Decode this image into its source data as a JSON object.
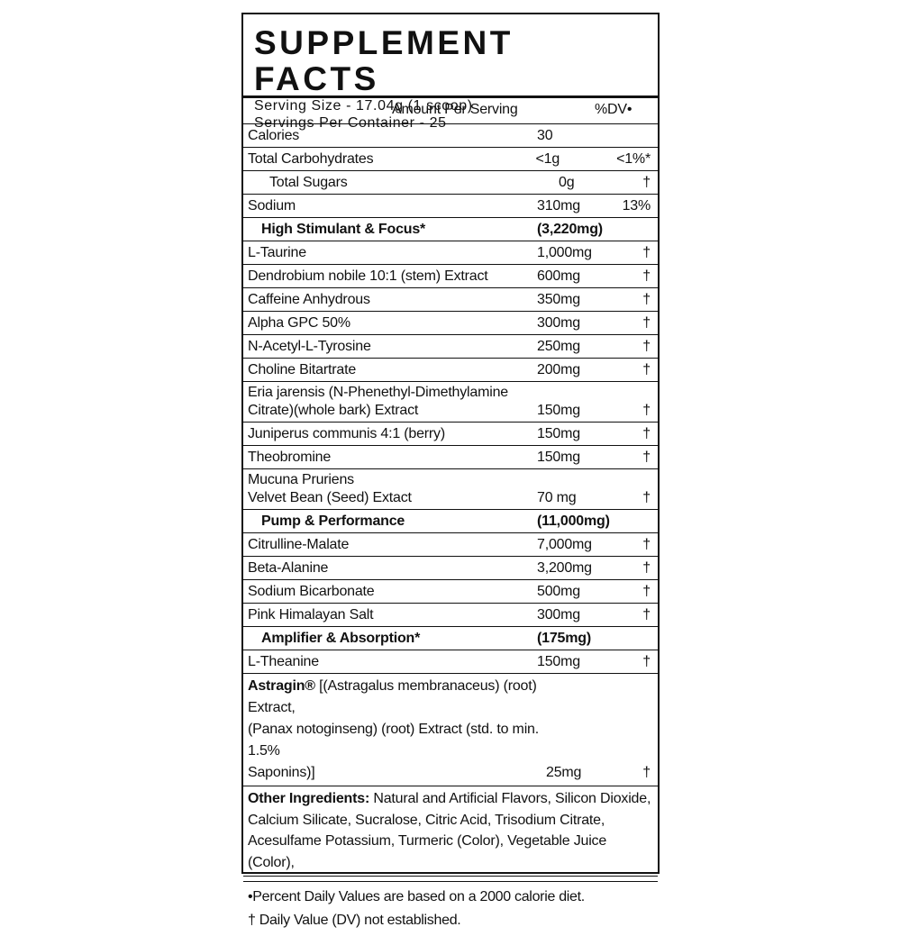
{
  "title": "SUPPLEMENT FACTS",
  "serving_size": "Serving Size - 17.04g (1 scoop)",
  "servings_per_container": "Servings Per Container - 25",
  "header": {
    "amount": "Amount Per Serving",
    "dv": "%DV•"
  },
  "nutrients": [
    {
      "name": "Calories",
      "amount": "30"
    },
    {
      "name": "Total Carbohydrates",
      "amount": "<1g",
      "dv": "<1%*",
      "sub": [
        {
          "name": "Total Sugars",
          "amount": "0g",
          "dv": "†"
        }
      ]
    },
    {
      "name": "Sodium",
      "amount": "310mg",
      "dv": "13%"
    }
  ],
  "blends": [
    {
      "name": "High Stimulant & Focus*",
      "amount": "(3,220mg)",
      "ingredients": [
        {
          "name": "L-Taurine",
          "amount": "1,000mg",
          "dv": "†"
        },
        {
          "name": "Dendrobium nobile 10:1 (stem) Extract",
          "amount": "600mg",
          "dv": "†"
        },
        {
          "name": "Caffeine Anhydrous",
          "amount": "350mg",
          "dv": "†"
        },
        {
          "name": "Alpha GPC 50%",
          "amount": "300mg",
          "dv": "†"
        },
        {
          "name": "N-Acetyl-L-Tyrosine",
          "amount": "250mg",
          "dv": "†"
        },
        {
          "name": "Choline Bitartrate",
          "amount": "200mg",
          "dv": "†"
        },
        {
          "name": [
            "Eria jarensis (N-Phenethyl-Dimethylamine",
            "Citrate)(whole bark) Extract"
          ],
          "amount": "150mg",
          "dv": "†"
        },
        {
          "name": "Juniperus communis 4:1 (berry)",
          "amount": "150mg",
          "dv": "†"
        },
        {
          "name": "Theobromine",
          "amount": "150mg",
          "dv": "†"
        },
        {
          "name": [
            "Mucuna Pruriens",
            "Velvet Bean (Seed) Extact"
          ],
          "amount": "70 mg",
          "dv": "†"
        }
      ]
    },
    {
      "name": "Pump & Performance",
      "amount": "(11,000mg)",
      "ingredients": [
        {
          "name": "Citrulline-Malate",
          "amount": "7,000mg",
          "dv": "†"
        },
        {
          "name": "Beta-Alanine",
          "amount": "3,200mg",
          "dv": "†"
        },
        {
          "name": "Sodium Bicarbonate",
          "amount": "500mg",
          "dv": "†"
        },
        {
          "name": "Pink Himalayan Salt",
          "amount": "300mg",
          "dv": "†"
        }
      ]
    },
    {
      "name": "Amplifier & Absorption*",
      "amount": "(175mg)",
      "ingredients": [
        {
          "name": "L-Theanine",
          "amount": "150mg",
          "dv": "†"
        }
      ]
    }
  ],
  "astragin": {
    "name": "Astragin®",
    "description_lines": [
      " [(Astragalus membranaceus) (root) Extract,",
      "(Panax notoginseng) (root) Extract (std. to min. 1.5%",
      "Saponins)]"
    ],
    "amount": "25mg",
    "dv": "†"
  },
  "other_ingredients": {
    "label": "Other Ingredients:",
    "text": " Natural and Artificial Flavors, Silicon Dioxide, Calcium Silicate, Sucralose, Citric Acid, Trisodium Citrate, Acesulfame Potassium, Turmeric (Color), Vegetable Juice (Color),"
  },
  "footnotes": [
    "•Percent Daily Values are based on a 2000 calorie diet.",
    "† Daily Value (DV) not established."
  ]
}
